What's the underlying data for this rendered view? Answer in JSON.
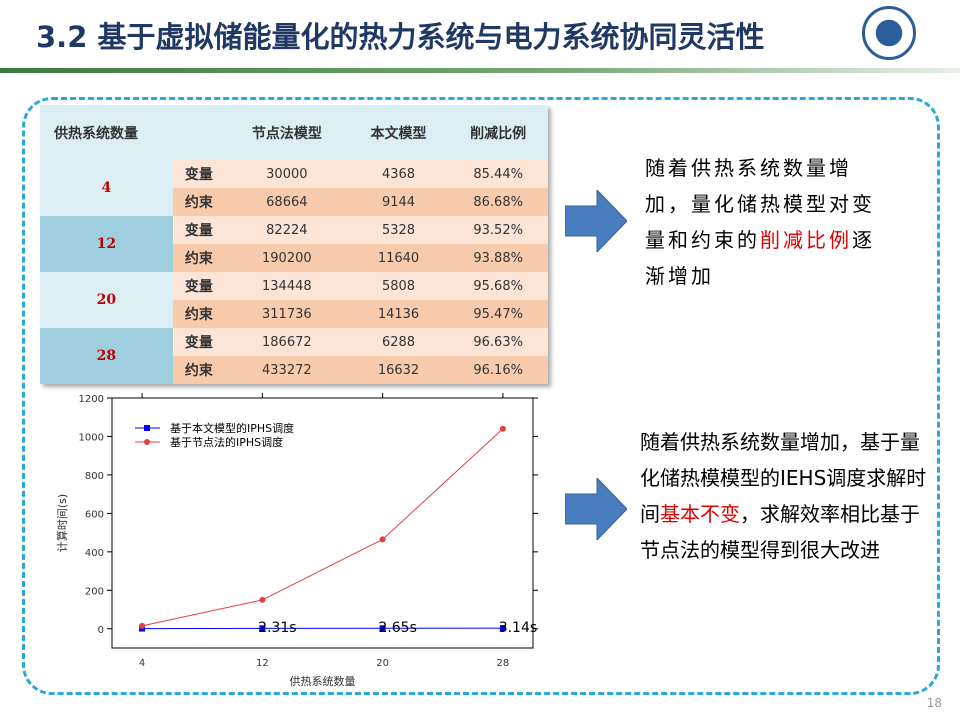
{
  "header": {
    "title": "3.2 基于虚拟储能量化的热力系统与电力系统协同灵活性"
  },
  "table": {
    "headers": [
      "供热系统数量",
      "节点法模型",
      "本文模型",
      "削减比例"
    ],
    "groups": [
      {
        "count": "4",
        "rows": [
          [
            "变量",
            "30000",
            "4368",
            "85.44%"
          ],
          [
            "约束",
            "68664",
            "9144",
            "86.68%"
          ]
        ]
      },
      {
        "count": "12",
        "rows": [
          [
            "变量",
            "82224",
            "5328",
            "93.52%"
          ],
          [
            "约束",
            "190200",
            "11640",
            "93.88%"
          ]
        ]
      },
      {
        "count": "20",
        "rows": [
          [
            "变量",
            "134448",
            "5808",
            "95.68%"
          ],
          [
            "约束",
            "311736",
            "14136",
            "95.47%"
          ]
        ]
      },
      {
        "count": "28",
        "rows": [
          [
            "变量",
            "186672",
            "6288",
            "96.63%"
          ],
          [
            "约束",
            "433272",
            "16632",
            "96.16%"
          ]
        ]
      }
    ]
  },
  "text1": {
    "before": "随着供热系统数量增加，量化储热模型对变量和约束的",
    "highlight": "削减比例",
    "after": "逐渐增加"
  },
  "text2": {
    "before": "随着供热系统数量增加，基于量化储热模模型的IEHS调度求解时间",
    "highlight": "基本不变",
    "after": "，求解效率相比基于节点法的模型得到很大改进"
  },
  "page_number": "18",
  "chart_data": {
    "type": "line",
    "xlabel": "供热系统数量",
    "ylabel": "计算时间(s)",
    "x": [
      4,
      12,
      20,
      28
    ],
    "xticks": [
      "4",
      "12",
      "20",
      "28"
    ],
    "yticks": [
      0,
      200,
      400,
      600,
      800,
      1000,
      1200
    ],
    "ylim": [
      -100,
      1200
    ],
    "xlim": [
      2,
      30
    ],
    "legend": "top-left",
    "series": [
      {
        "name": "基于本文模型的IPHS调度",
        "color": "#0000ff",
        "values": [
          1,
          2.31,
          2.65,
          3.14
        ]
      },
      {
        "name": "基于节点法的IPHS调度",
        "color": "#e04040",
        "values": [
          15,
          150,
          465,
          1040
        ]
      }
    ],
    "annotations": [
      "2.31s",
      "2.65s",
      "3.14s"
    ]
  }
}
